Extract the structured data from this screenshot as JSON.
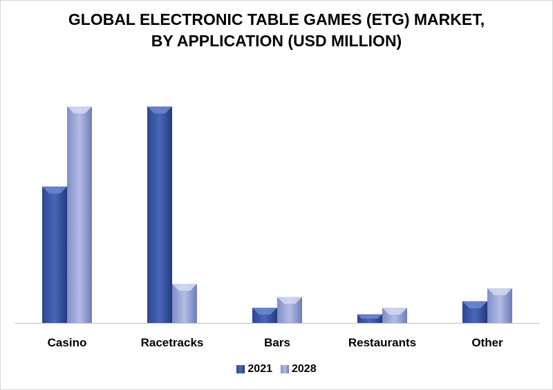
{
  "chart_data": {
    "type": "bar",
    "title_lines": [
      "GLOBAL ELECTRONIC TABLE GAMES (ETG) MARKET,",
      "BY APPLICATION (USD MILLION)"
    ],
    "categories": [
      "Casino",
      "Racetracks",
      "Bars",
      "Restaurants",
      "Other"
    ],
    "series": [
      {
        "name": "2021",
        "values": [
          63,
          100,
          7,
          4,
          10
        ],
        "color": "#3f5ba8"
      },
      {
        "name": "2028",
        "values": [
          100,
          18,
          12,
          7,
          16
        ],
        "color": "#9aa8d8"
      }
    ],
    "ylim": [
      0,
      100
    ],
    "grid": false,
    "legend_position": "bottom"
  }
}
